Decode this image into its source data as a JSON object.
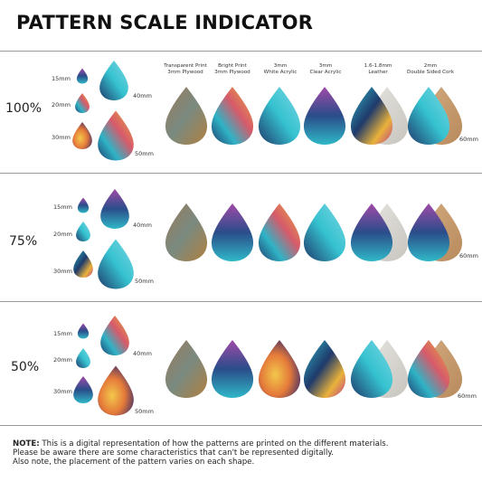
{
  "title": "PATTERN SCALE INDICATOR",
  "materials": [
    "Transparent Print\n3mm Plywood",
    "Bright Print\n3mm Plywood",
    "3mm\nWhite Acrylic",
    "3mm\nClear Acrylic",
    "1.6-1.8mm\nLeather",
    "2mm\nDouble Sided Cork"
  ],
  "sections": [
    {
      "percent": "100%",
      "sizes": [
        "15mm",
        "20mm",
        "30mm",
        "40mm",
        "50mm"
      ],
      "product_size": "60mm"
    },
    {
      "percent": "75%",
      "sizes": [
        "15mm",
        "20mm",
        "30mm",
        "40mm",
        "50mm"
      ],
      "product_size": "60mm"
    },
    {
      "percent": "50%",
      "sizes": [
        "15mm",
        "20mm",
        "30mm",
        "40mm",
        "50mm"
      ],
      "product_size": "60mm"
    }
  ],
  "note": {
    "label": "NOTE:",
    "line1": " This is a digital representation of how the patterns are printed on the different materials.",
    "line2": "Please be aware there are some characteristics that can't be represented digitally.",
    "line3": "Also note, the placement of the pattern varies on each shape."
  },
  "colors": {
    "rule": "#9a9a9a",
    "teal": "#2fb3c6",
    "navy": "#1f3a6b",
    "gold": "#e9b23a",
    "magenta": "#c0408a",
    "cork": "#c9a074",
    "leather_back": "#d9d7d2"
  }
}
